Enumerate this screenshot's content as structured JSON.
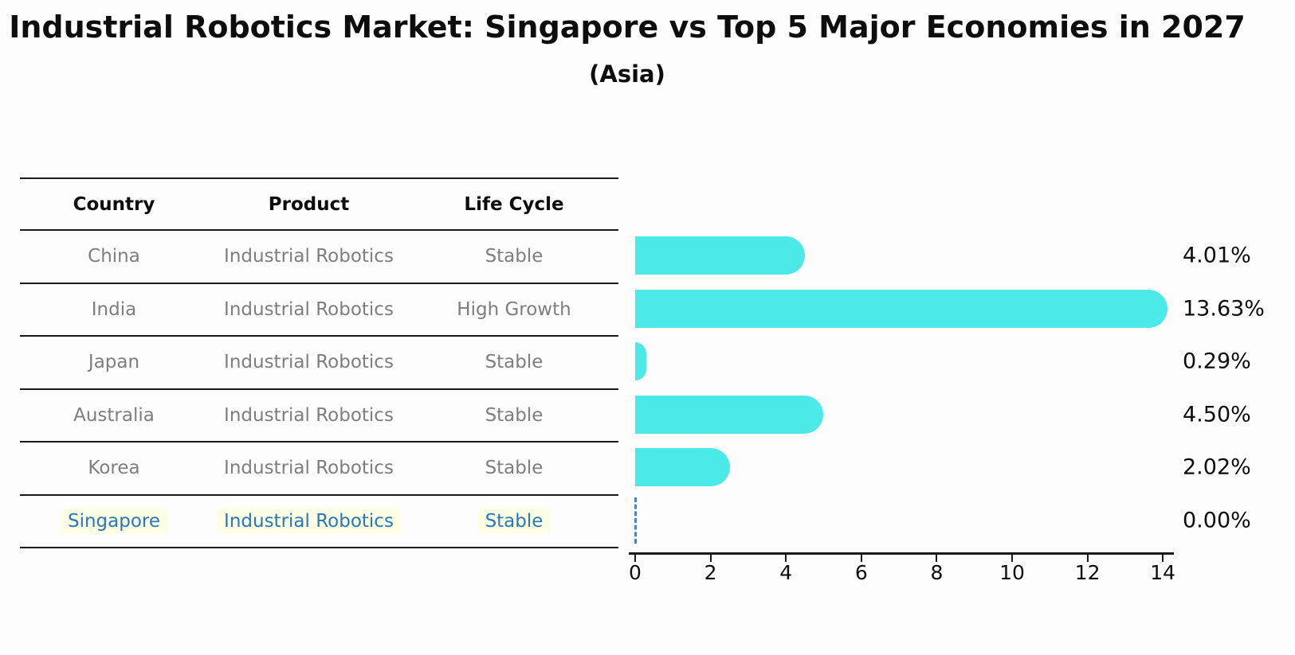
{
  "title": "Industrial Robotics Market: Singapore vs Top 5 Major Economies in 2027",
  "subtitle": "(Asia)",
  "table": {
    "headers": [
      "Country",
      "Product",
      "Life Cycle"
    ],
    "rows": [
      {
        "country": "China",
        "product": "Industrial Robotics",
        "life_cycle": "Stable",
        "highlight": false
      },
      {
        "country": "India",
        "product": "Industrial Robotics",
        "life_cycle": "High Growth",
        "highlight": false
      },
      {
        "country": "Japan",
        "product": "Industrial Robotics",
        "life_cycle": "Stable",
        "highlight": false
      },
      {
        "country": "Australia",
        "product": "Industrial Robotics",
        "life_cycle": "Stable",
        "highlight": false
      },
      {
        "country": "Korea",
        "product": "Industrial Robotics",
        "life_cycle": "Stable",
        "highlight": true
      }
    ],
    "highlight_row": {
      "country": "Singapore",
      "product": "Industrial Robotics",
      "life_cycle": "Stable"
    }
  },
  "chart_data": {
    "type": "bar",
    "orientation": "horizontal",
    "title": "Industrial Robotics Market: Singapore vs Top 5 Major Economies in 2027",
    "subtitle": "(Asia)",
    "categories": [
      "China",
      "India",
      "Japan",
      "Australia",
      "Korea",
      "Singapore"
    ],
    "values": [
      4.01,
      13.63,
      0.29,
      4.5,
      2.02,
      0.0
    ],
    "value_labels": [
      "4.01%",
      "13.63%",
      "0.29%",
      "4.50%",
      "2.02%",
      "0.00%"
    ],
    "x_ticks": [
      0,
      2,
      4,
      6,
      8,
      10,
      12,
      14
    ],
    "xlim": [
      0,
      14.3
    ],
    "xlabel": "",
    "ylabel": "",
    "grid": false,
    "legend": false,
    "bar_color": "#4BE9E7",
    "highlight_text_color": "#2878BA",
    "zero_marker_color": "#4788c8",
    "zero_marker_style": "dashed-vertical-line"
  }
}
